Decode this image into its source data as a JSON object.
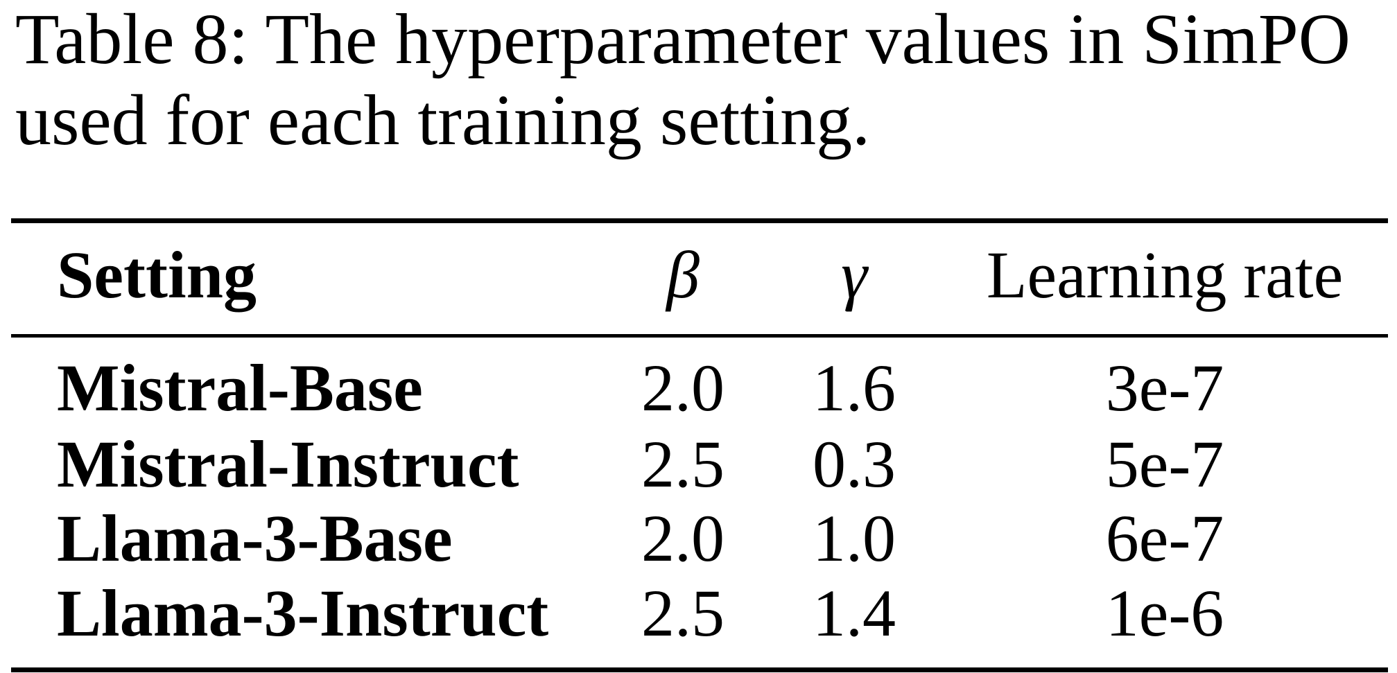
{
  "caption": {
    "line1": "Table 8: The hyperparameter values in SimPO",
    "line2": "used for each training setting."
  },
  "table": {
    "header": [
      "Setting",
      "β",
      "γ",
      "Learning rate"
    ],
    "rows": [
      [
        "Mistral-Base",
        "2.0",
        "1.6",
        "3e-7"
      ],
      [
        "Mistral-Instruct",
        "2.5",
        "0.3",
        "5e-7"
      ],
      [
        "Llama-3-Base",
        "2.0",
        "1.0",
        "6e-7"
      ],
      [
        "Llama-3-Instruct",
        "2.5",
        "1.4",
        "1e-6"
      ]
    ]
  }
}
